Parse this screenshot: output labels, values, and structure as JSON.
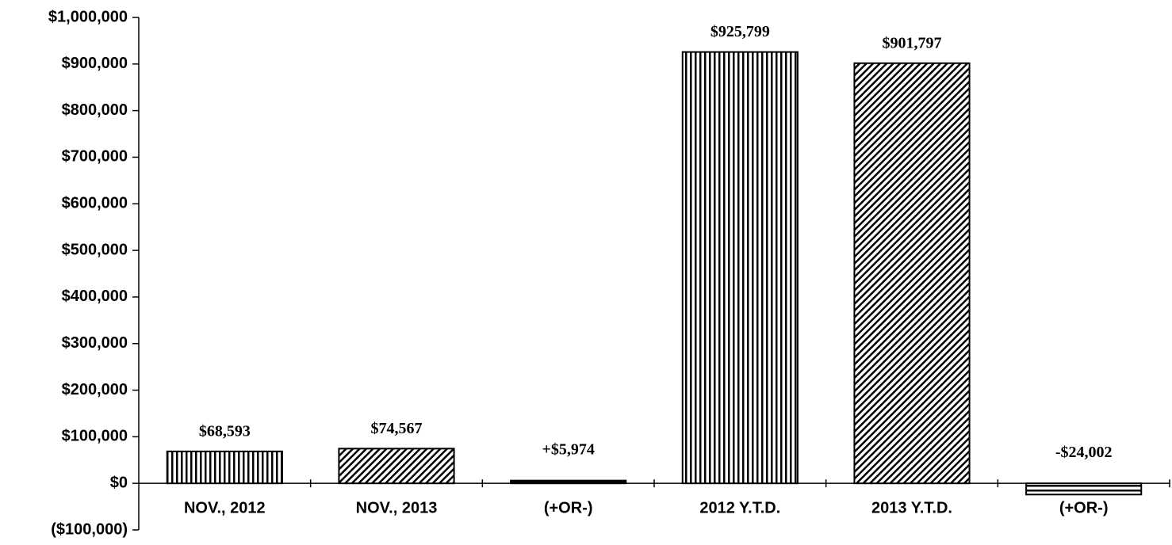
{
  "chart_data": {
    "type": "bar",
    "categories": [
      "NOV., 2012",
      "NOV., 2013",
      "(+OR-)",
      "2012 Y.T.D.",
      "2013 Y.T.D.",
      "(+OR-)"
    ],
    "values": [
      68593,
      74567,
      5974,
      925799,
      901797,
      -24002
    ],
    "value_labels": [
      "$68,593",
      "$74,567",
      "+$5,974",
      "$925,799",
      "$901,797",
      "-$24,002"
    ],
    "patterns": [
      "vertical",
      "diagonal",
      "solid",
      "vertical",
      "diagonal",
      "horizontal"
    ],
    "color": "#000000",
    "ylim": [
      -100000,
      1000000
    ],
    "yticks": [
      {
        "value": -100000,
        "label": "($100,000)"
      },
      {
        "value": 0,
        "label": "$0"
      },
      {
        "value": 100000,
        "label": "$100,000"
      },
      {
        "value": 200000,
        "label": "$200,000"
      },
      {
        "value": 300000,
        "label": "$300,000"
      },
      {
        "value": 400000,
        "label": "$400,000"
      },
      {
        "value": 500000,
        "label": "$500,000"
      },
      {
        "value": 600000,
        "label": "$600,000"
      },
      {
        "value": 700000,
        "label": "$700,000"
      },
      {
        "value": 800000,
        "label": "$800,000"
      },
      {
        "value": 900000,
        "label": "$900,000"
      },
      {
        "value": 1000000,
        "label": "$1,000,000"
      }
    ],
    "grid": false
  }
}
